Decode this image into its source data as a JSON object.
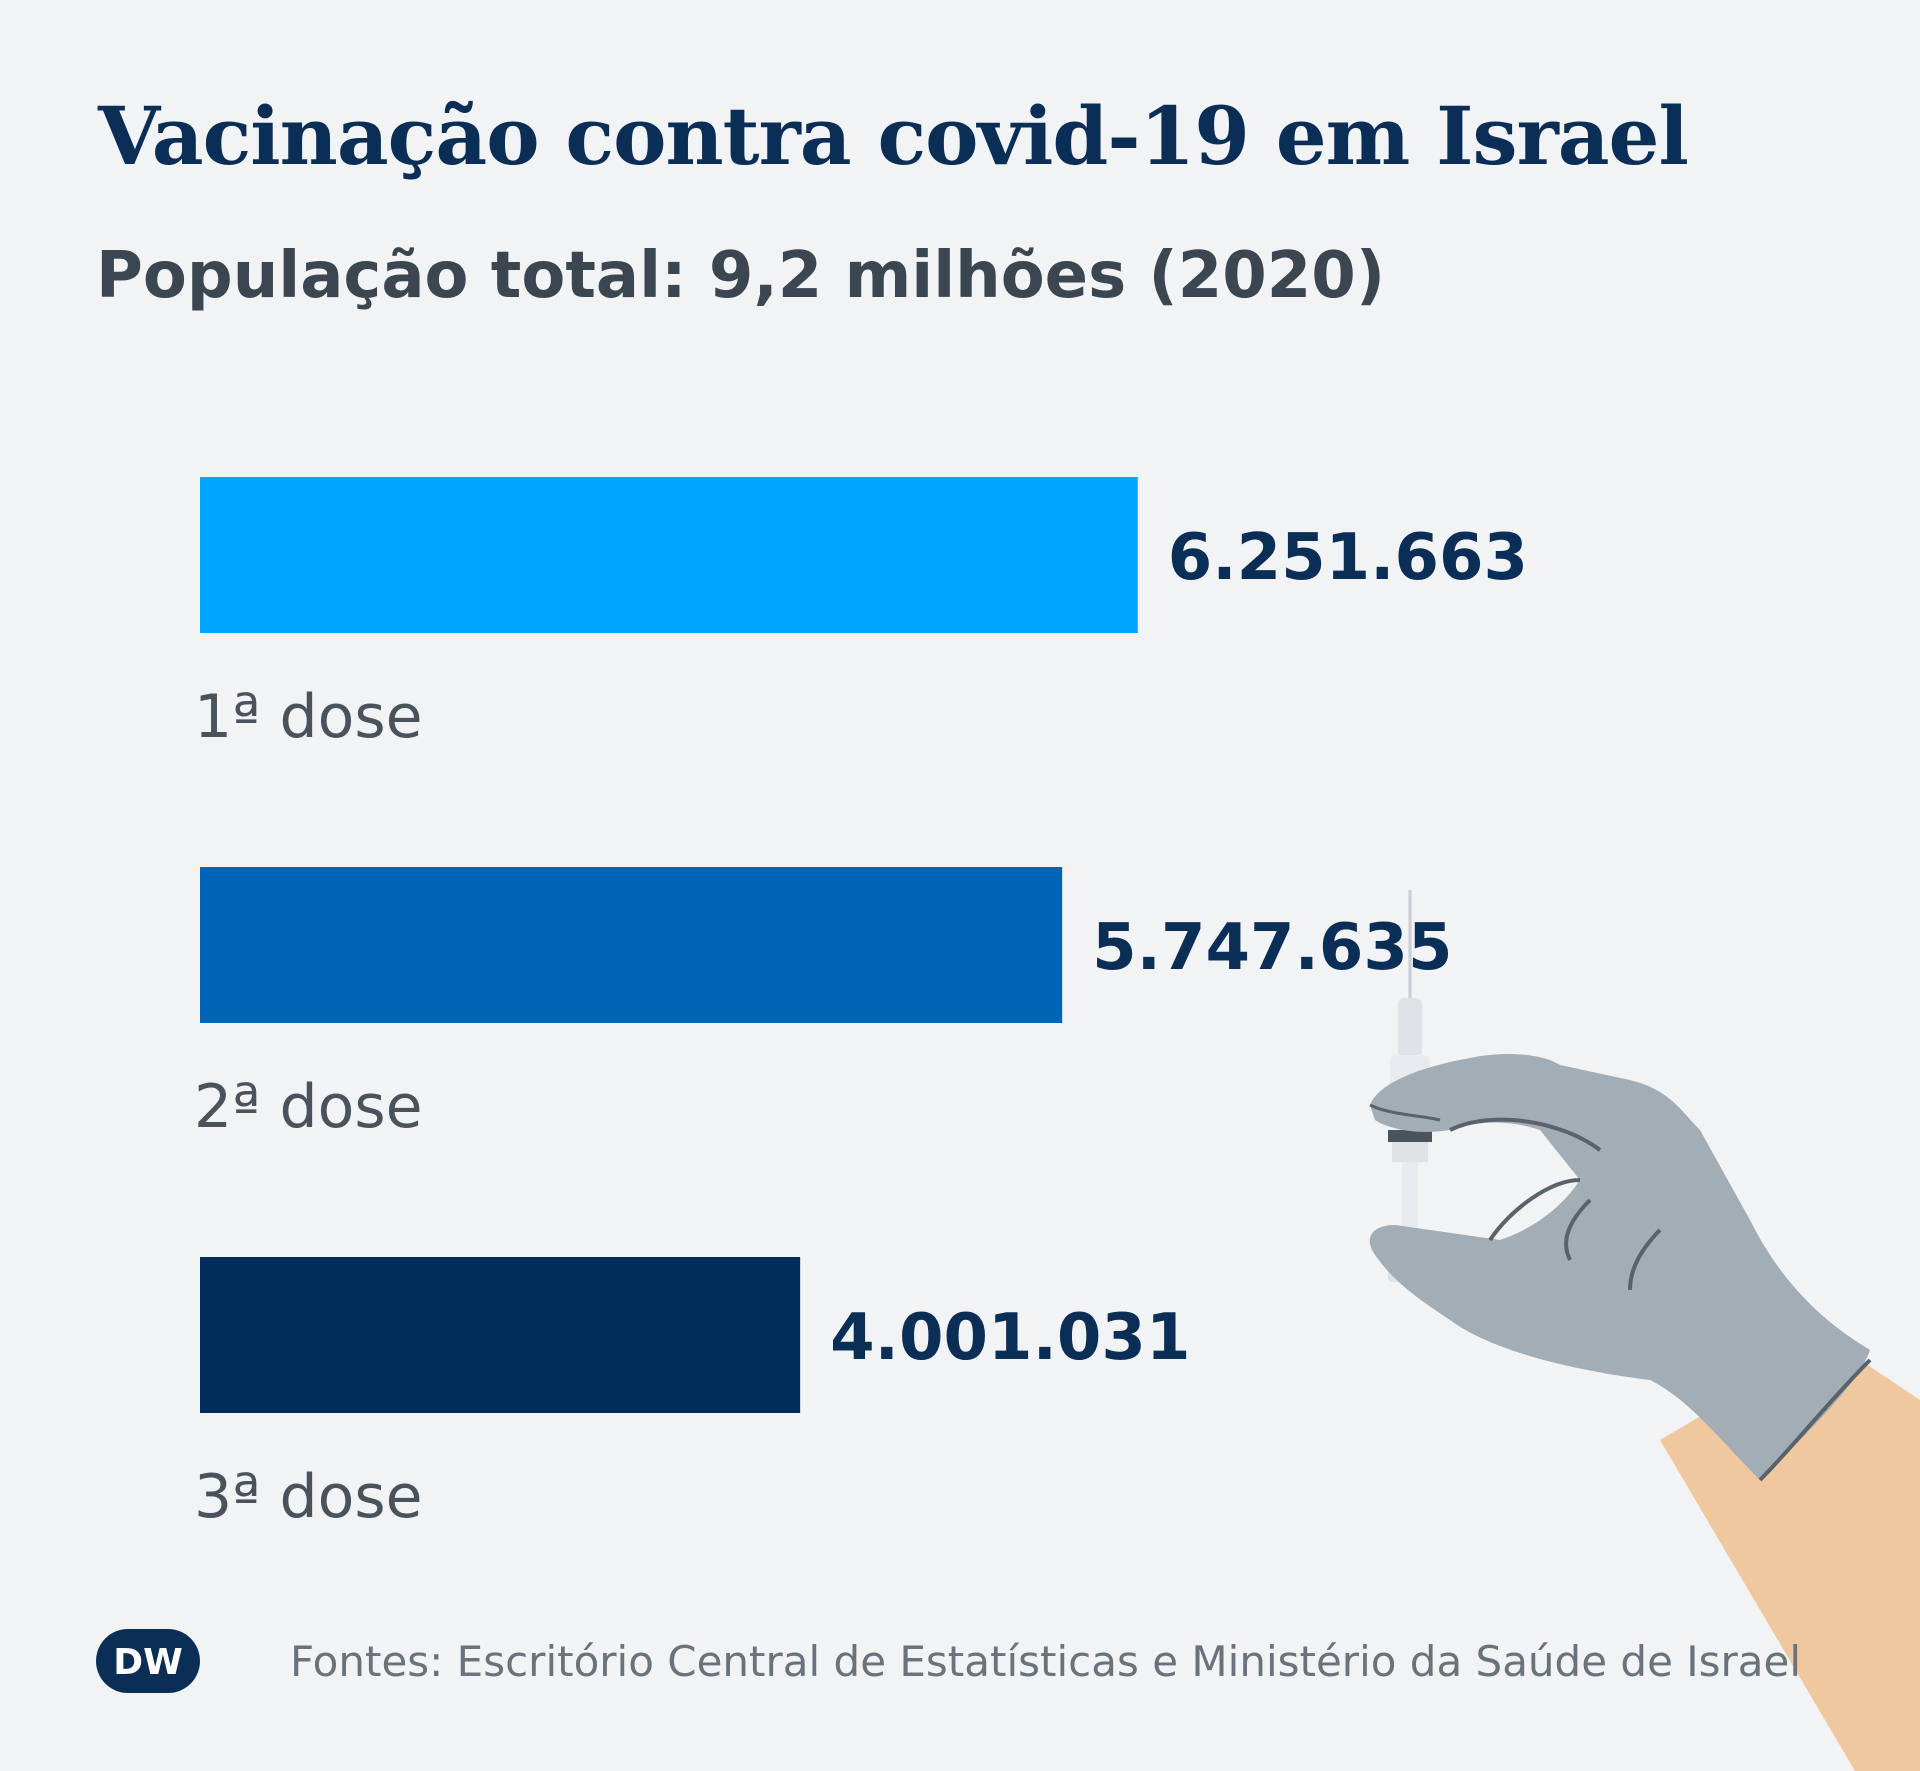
{
  "chart_data": {
    "type": "bar",
    "orientation": "horizontal",
    "title": "Vacinação contra covid-19 em Israel",
    "subtitle": "População total: 9,2 milhões (2020)",
    "categories": [
      "1ª dose",
      "2ª dose",
      "3ª dose"
    ],
    "values": [
      6251663,
      5747635,
      4001031
    ],
    "value_labels": [
      "6.251.663",
      "5.747.635",
      "4.001.031"
    ],
    "colors": [
      "#00a5ff",
      "#0064b4",
      "#002d5a"
    ],
    "xlim": [
      0,
      7800000
    ],
    "grid": false,
    "legend": "none"
  },
  "footer": {
    "logo": "DW",
    "source": "Fontes: Escritório Central de Estatísticas e Ministério da Saúde de Israel"
  },
  "illustration": {
    "icon": "gloved-hand-syringe-icon",
    "glove_color": "#a3adb5",
    "skin_color": "#f0c8a0"
  }
}
